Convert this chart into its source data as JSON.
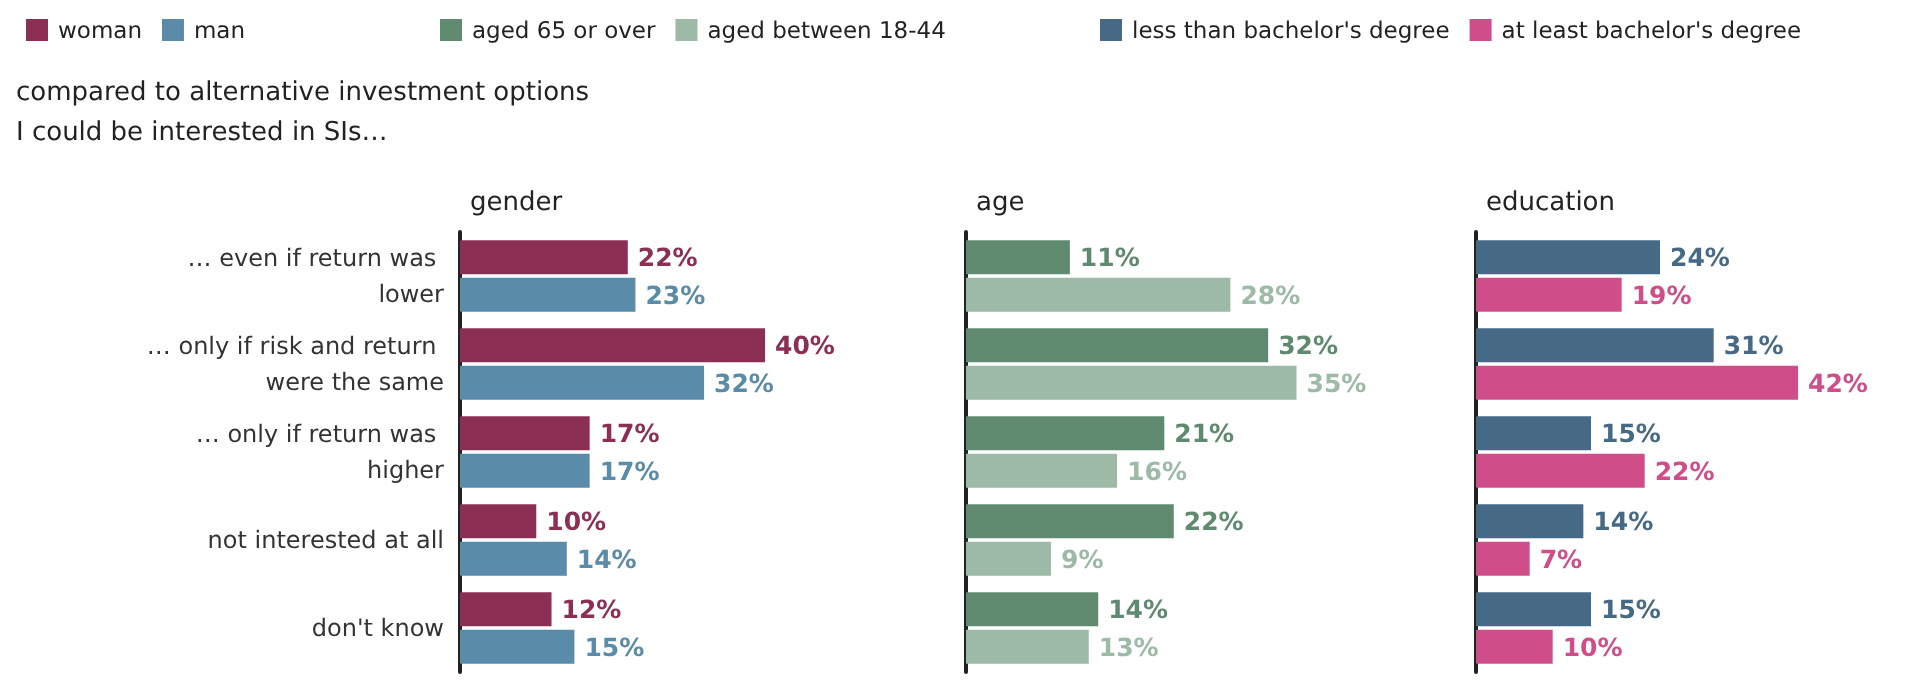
{
  "chart_data": [
    {
      "type": "bar",
      "orientation": "horizontal",
      "title": "gender",
      "annotations": [
        "compared to alternative investment options",
        "I could be interested in SIs…"
      ],
      "categories": [
        "… even if return was lower",
        "… only if risk and return were the same",
        "… only if return was higher",
        "not interested at all",
        "don't know"
      ],
      "series": [
        {
          "name": "woman",
          "color": "#8b2f54",
          "values": [
            22,
            40,
            17,
            10,
            12
          ],
          "value_labels": [
            "22%",
            "40%",
            "17%",
            "10%",
            "12%"
          ]
        },
        {
          "name": "man",
          "color": "#5a8ba8",
          "values": [
            23,
            32,
            17,
            14,
            15
          ],
          "value_labels": [
            "23%",
            "32%",
            "17%",
            "14%",
            "15%"
          ]
        }
      ],
      "legend": "top",
      "grid": false,
      "tick_labels": "y"
    },
    {
      "type": "bar",
      "orientation": "horizontal",
      "title": "age",
      "categories": [
        "… even if return was lower",
        "… only if risk and return were the same",
        "… only if return was higher",
        "not interested at all",
        "don't know"
      ],
      "series": [
        {
          "name": "aged 65 or over",
          "color": "#5f8a6f",
          "values": [
            11,
            32,
            21,
            22,
            14
          ],
          "value_labels": [
            "11%",
            "32%",
            "21%",
            "22%",
            "14%"
          ]
        },
        {
          "name": "aged between 18-44",
          "color": "#9dbaa7",
          "values": [
            28,
            35,
            16,
            9,
            13
          ],
          "value_labels": [
            "28%",
            "35%",
            "16%",
            "9%",
            "13%"
          ]
        }
      ],
      "legend": "top",
      "grid": false,
      "tick_labels": false
    },
    {
      "type": "bar",
      "orientation": "horizontal",
      "title": "education",
      "categories": [
        "… even if return was lower",
        "… only if risk and return were the same",
        "… only if return was higher",
        "not interested at all",
        "don't know"
      ],
      "series": [
        {
          "name": "less than bachelor's degree",
          "color": "#466a85",
          "values": [
            24,
            31,
            15,
            14,
            15
          ],
          "value_labels": [
            "24%",
            "31%",
            "15%",
            "14%",
            "15%"
          ]
        },
        {
          "name": "at least bachelor's degree",
          "color": "#cf4e8a",
          "values": [
            19,
            42,
            22,
            7,
            10
          ],
          "value_labels": [
            "19%",
            "42%",
            "22%",
            "7%",
            "10%"
          ]
        }
      ],
      "legend": "top",
      "grid": false,
      "tick_labels": false
    }
  ]
}
